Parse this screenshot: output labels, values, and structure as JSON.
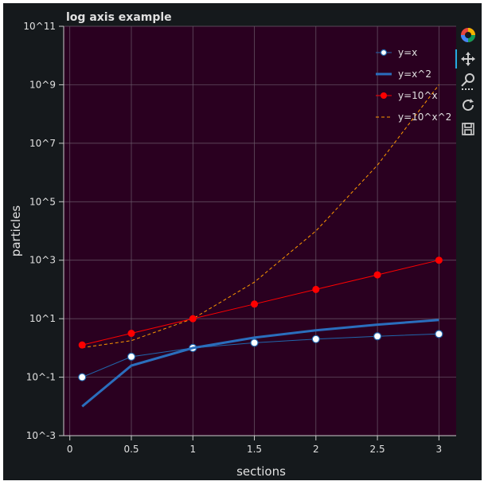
{
  "chart_data": {
    "type": "line",
    "title": "log axis example",
    "xlabel": "sections",
    "ylabel": "particles",
    "x": [
      0.1,
      0.5,
      1.0,
      1.5,
      2.0,
      2.5,
      3.0
    ],
    "xlim": [
      -0.05,
      3.14
    ],
    "ylim": [
      0.001,
      100000000000
    ],
    "yscale": "log",
    "x_ticks": [
      "0",
      "0.5",
      "1",
      "1.5",
      "2",
      "2.5",
      "3"
    ],
    "y_ticks": [
      "10^-3",
      "10^-1",
      "10^1",
      "10^3",
      "10^5",
      "10^7",
      "10^9",
      "10^11"
    ],
    "grid": true,
    "legend_position": "top-right",
    "series": [
      {
        "name": "y=x",
        "values": [
          0.1,
          0.5,
          1.0,
          1.5,
          2.0,
          2.5,
          3.0
        ],
        "style": "line+circles",
        "color": "#2166ac",
        "marker_fill": "#ffffff"
      },
      {
        "name": "y=x^2",
        "values": [
          0.01,
          0.25,
          1.0,
          2.25,
          4.0,
          6.25,
          9.0
        ],
        "style": "thick-line",
        "color": "#2a6ebd"
      },
      {
        "name": "y=10^x",
        "values": [
          1.26,
          3.16,
          10.0,
          31.6,
          100.0,
          316.2,
          1000.0
        ],
        "style": "line+dots",
        "color": "#ff0000"
      },
      {
        "name": "y=10^x^2",
        "values": [
          1.02,
          1.78,
          10.0,
          177.8,
          10000.0,
          1778279.0,
          1000000000.0
        ],
        "style": "dashed",
        "color": "#ff9900"
      }
    ]
  },
  "theme": {
    "background": "#15191c",
    "plot_background": "#2a0020",
    "grid_color": "#6b5a6a",
    "text_color": "#e0e0e0"
  },
  "toolbar": {
    "tools": [
      "bokeh-logo-icon",
      "pan-icon",
      "zoom-icon",
      "reset-icon",
      "save-icon"
    ]
  }
}
